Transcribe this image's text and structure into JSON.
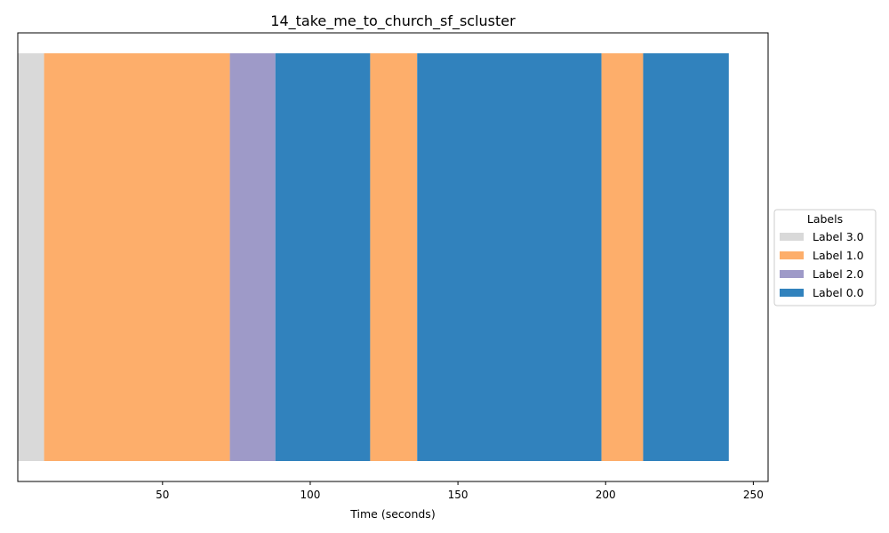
{
  "chart_data": {
    "type": "bar",
    "orientation": "horizontal-timeline",
    "title": "14_take_me_to_church_sf_scluster",
    "xlabel": "Time (seconds)",
    "ylabel": "",
    "xlim": [
      1,
      255
    ],
    "xticks": [
      50,
      100,
      150,
      200,
      250
    ],
    "grid": false,
    "legend": {
      "title": "Labels",
      "placement": "center-right-outside",
      "entries": [
        {
          "name": "Label 3.0",
          "color": "#d9d9d9"
        },
        {
          "name": "Label 1.0",
          "color": "#fdae6b"
        },
        {
          "name": "Label 2.0",
          "color": "#9e9ac8"
        },
        {
          "name": "Label 0.0",
          "color": "#3182bd"
        }
      ]
    },
    "segments": [
      {
        "label": "Label 3.0",
        "start": 1.0,
        "end": 9.9
      },
      {
        "label": "Label 1.0",
        "start": 9.9,
        "end": 72.8
      },
      {
        "label": "Label 2.0",
        "start": 72.8,
        "end": 88.2
      },
      {
        "label": "Label 0.0",
        "start": 88.2,
        "end": 120.3
      },
      {
        "label": "Label 1.0",
        "start": 120.3,
        "end": 136.2
      },
      {
        "label": "Label 0.0",
        "start": 136.2,
        "end": 198.6
      },
      {
        "label": "Label 1.0",
        "start": 198.6,
        "end": 212.7
      },
      {
        "label": "Label 0.0",
        "start": 212.7,
        "end": 241.7
      }
    ]
  }
}
